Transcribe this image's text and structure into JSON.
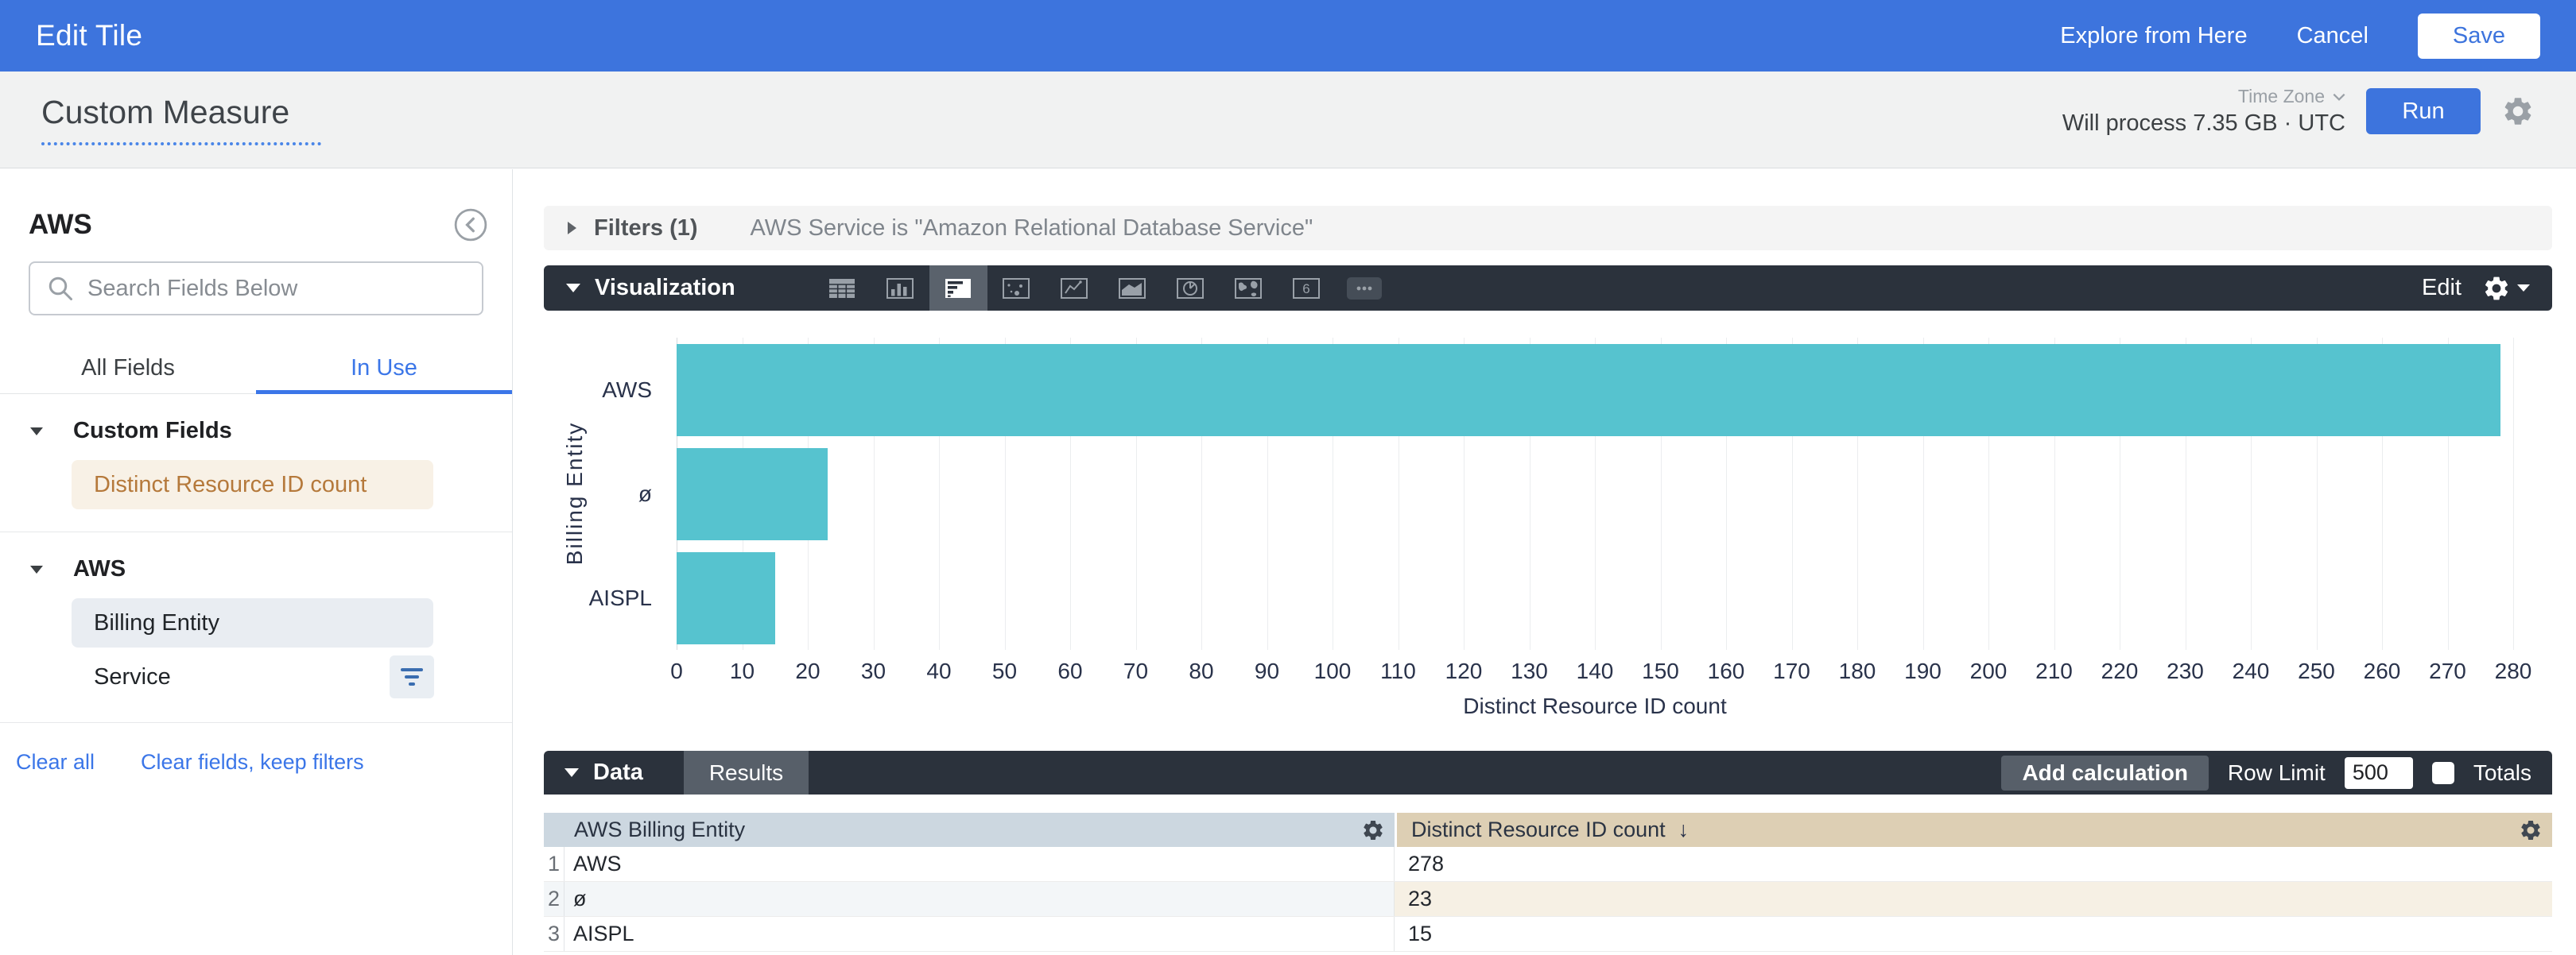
{
  "app_bar": {
    "title": "Edit Tile",
    "explore": "Explore from Here",
    "cancel": "Cancel",
    "save": "Save"
  },
  "query_bar": {
    "title": "Custom Measure",
    "time_zone_label": "Time Zone",
    "process_text": "Will process 7.35 GB · UTC",
    "run": "Run"
  },
  "sidebar": {
    "title": "AWS",
    "search_placeholder": "Search Fields Below",
    "tabs": {
      "all_fields": "All Fields",
      "in_use": "In Use",
      "active_tab": "In Use"
    },
    "sections": [
      {
        "label": "Custom Fields",
        "items": [
          {
            "label": "Distinct Resource ID count",
            "style": "measure"
          }
        ]
      },
      {
        "label": "AWS",
        "items": [
          {
            "label": "Billing Entity",
            "style": "dimension"
          },
          {
            "label": "Service",
            "style": "plain",
            "has_filter": true
          }
        ]
      }
    ],
    "footer_links": [
      "Clear all",
      "Clear fields, keep filters"
    ]
  },
  "filters": {
    "label": "Filters (1)",
    "summary": "AWS Service is \"Amazon Relational Database Service\""
  },
  "visualization": {
    "label": "Visualization",
    "edit": "Edit",
    "icons": [
      "table",
      "column-chart",
      "bar-chart",
      "scatter",
      "line-chart",
      "area-chart",
      "pie-chart",
      "map",
      "single-value",
      "more"
    ],
    "selected_icon": "bar-chart"
  },
  "chart_data": {
    "type": "bar",
    "orientation": "horizontal",
    "title": "",
    "categories": [
      "AWS",
      "ø",
      "AISPL"
    ],
    "values": [
      278,
      23,
      15
    ],
    "xlabel": "Distinct Resource ID count",
    "ylabel": "Billing Entity",
    "xlim": [
      0,
      280
    ],
    "tick_step": 10,
    "grid": true,
    "legend": false,
    "bar_color": "#56c3cf"
  },
  "data_panel": {
    "label": "Data",
    "tab": "Results",
    "add_calculation": "Add calculation",
    "row_limit_label": "Row Limit",
    "row_limit_value": "500",
    "totals_label": "Totals",
    "totals_checked": false,
    "table": {
      "columns": [
        "AWS Billing Entity",
        "Distinct Resource ID count"
      ],
      "sorted_column": "Distinct Resource ID count",
      "sort_direction": "desc",
      "rows": [
        [
          "AWS",
          "278"
        ],
        [
          "ø",
          "23"
        ],
        [
          "AISPL",
          "15"
        ]
      ]
    }
  },
  "colors": {
    "brand_blue": "#3d74dd",
    "link_blue": "#3b76e8",
    "toolbar_dark": "#2b323c",
    "bar_teal": "#56c3cf",
    "table_header_dim_bg": "#ccd7e0",
    "table_header_measure_bg": "#ddcfb4",
    "measure_tint": "#f8f1e6",
    "measure_text": "#b5793b"
  }
}
